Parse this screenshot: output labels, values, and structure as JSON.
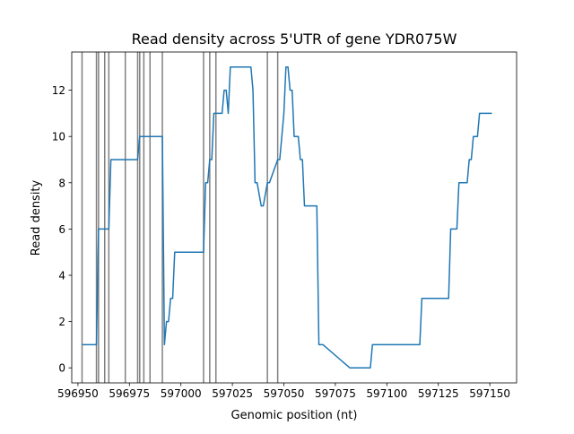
{
  "chart_data": {
    "type": "line",
    "title": "Read density across 5'UTR of gene YDR075W",
    "xlabel": "Genomic position (nt)",
    "ylabel": "Read density",
    "xlim": [
      596947,
      597163
    ],
    "ylim": [
      -0.65,
      13.65
    ],
    "xticks": [
      596950,
      596975,
      597000,
      597025,
      597050,
      597075,
      597100,
      597125,
      597150
    ],
    "yticks": [
      0,
      2,
      4,
      6,
      8,
      10,
      12
    ],
    "grid": false,
    "line_color": "#1f77b4",
    "vline_color": "#808080",
    "vlines": [
      596952,
      596959,
      596960,
      596963,
      596965,
      596973,
      596979,
      596980,
      596982,
      596985,
      596991,
      597011,
      597014,
      597017,
      597042,
      597047
    ],
    "series": [
      {
        "x": [
          596952,
          596959,
          596960,
          596965,
          596966,
          596979,
          596980,
          596991,
          596992,
          596993,
          596994,
          596995,
          596996,
          596997,
          596998,
          597011,
          597012,
          597013,
          597014,
          597015,
          597016,
          597017,
          597020,
          597021,
          597022,
          597023,
          597024,
          597025,
          597030,
          597034,
          597035,
          597036,
          597037,
          597039,
          597040,
          597042,
          597043,
          597047,
          597048,
          597049,
          597050,
          597051,
          597052,
          597053,
          597054,
          597055,
          597057,
          597058,
          597059,
          597060,
          597062,
          597066,
          597067,
          597069,
          597082,
          597083,
          597092,
          597093,
          597116,
          597117,
          597130,
          597131,
          597134,
          597135,
          597139,
          597140,
          597141,
          597142,
          597143,
          597144,
          597145,
          597146,
          597147,
          597148,
          597150,
          597151
        ],
        "y": [
          1,
          1,
          6,
          6,
          9,
          9,
          10,
          10,
          1,
          2,
          2,
          3,
          3,
          5,
          5,
          5,
          8,
          8,
          9,
          9,
          11,
          11,
          11,
          12,
          12,
          11,
          13,
          13,
          13,
          13,
          12,
          8,
          8,
          7,
          7,
          8,
          8,
          9,
          9,
          10,
          11,
          13,
          13,
          12,
          12,
          10,
          10,
          9,
          9,
          7,
          7,
          7,
          1,
          1,
          0,
          0,
          0,
          1,
          1,
          3,
          3,
          6,
          6,
          8,
          8,
          9,
          9,
          10,
          10,
          10,
          11,
          11,
          11,
          11,
          11,
          11
        ]
      }
    ]
  }
}
